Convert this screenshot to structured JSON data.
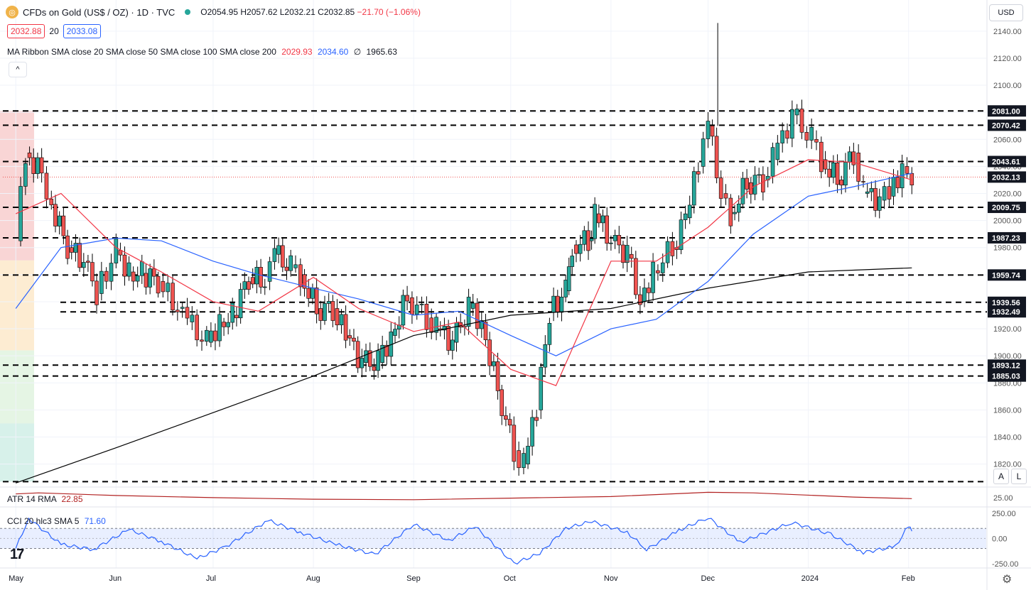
{
  "header": {
    "symbol": "CFDs on Gold (US$ / OZ) · 1D · TVC",
    "open": "O2054.95",
    "high": "H2057.62",
    "low": "L2032.21",
    "close": "C2032.85",
    "change": "−21.70 (−1.06%)",
    "bid": "2032.88",
    "spread": "20",
    "ask": "2033.08",
    "currency": "USD"
  },
  "indicators": {
    "ma_label": "MA Ribbon SMA close 20 SMA close 50 SMA close 100 SMA close 200",
    "ma_values": [
      "2029.93",
      "2034.60",
      "∅",
      "1965.63"
    ],
    "atr_label": "ATR 14 RMA",
    "atr_value": "22.85",
    "cci_label": "CCI 20 hlc3 SMA 5",
    "cci_value": "71.60"
  },
  "controls": {
    "auto": "A",
    "log": "L",
    "collapse": "^"
  },
  "colors": {
    "up": "#26a69a",
    "down": "#ef5350",
    "sma20": "#f23645",
    "sma50": "#2962ff",
    "sma200": "#000000",
    "cci": "#2962ff",
    "atr": "#b22222"
  },
  "chart_data": [
    {
      "type": "candlestick",
      "title": "CFDs on Gold (US$ / OZ) · 1D · TVC",
      "ylim": [
        1803,
        2163
      ],
      "y_ticks": [
        1820,
        1840,
        1860,
        1880,
        1900,
        1920,
        1940,
        1960,
        1980,
        2000,
        2020,
        2040,
        2060,
        2080,
        2100,
        2120,
        2140
      ],
      "x_labels": [
        {
          "label": "May",
          "date": "2023-05-01"
        },
        {
          "label": "Jun",
          "date": "2023-06-01"
        },
        {
          "label": "Jul",
          "date": "2023-07-01"
        },
        {
          "label": "Aug",
          "date": "2023-08-01"
        },
        {
          "label": "Sep",
          "date": "2023-09-01"
        },
        {
          "label": "Oct",
          "date": "2023-10-01"
        },
        {
          "label": "Nov",
          "date": "2023-11-01"
        },
        {
          "label": "Dec",
          "date": "2023-12-01"
        },
        {
          "label": "2024",
          "date": "2024-01-01"
        },
        {
          "label": "Feb",
          "date": "2024-02-01"
        }
      ],
      "date_range": [
        "2023-05-01",
        "2024-02-02"
      ],
      "closes": [
        {
          "date": "2023-05-01",
          "close": 1985
        },
        {
          "date": "2023-05-04",
          "close": 2050
        },
        {
          "date": "2023-05-09",
          "close": 2035
        },
        {
          "date": "2023-05-12",
          "close": 2012
        },
        {
          "date": "2023-05-17",
          "close": 1980
        },
        {
          "date": "2023-05-22",
          "close": 1970
        },
        {
          "date": "2023-05-26",
          "close": 1946
        },
        {
          "date": "2023-06-01",
          "close": 1978
        },
        {
          "date": "2023-06-05",
          "close": 1962
        },
        {
          "date": "2023-06-09",
          "close": 1961
        },
        {
          "date": "2023-06-14",
          "close": 1955
        },
        {
          "date": "2023-06-20",
          "close": 1935
        },
        {
          "date": "2023-06-23",
          "close": 1925
        },
        {
          "date": "2023-06-29",
          "close": 1910
        },
        {
          "date": "2023-07-03",
          "close": 1925
        },
        {
          "date": "2023-07-07",
          "close": 1930
        },
        {
          "date": "2023-07-12",
          "close": 1958
        },
        {
          "date": "2023-07-17",
          "close": 1955
        },
        {
          "date": "2023-07-20",
          "close": 1975
        },
        {
          "date": "2023-07-25",
          "close": 1965
        },
        {
          "date": "2023-07-28",
          "close": 1960
        },
        {
          "date": "2023-08-02",
          "close": 1935
        },
        {
          "date": "2023-08-07",
          "close": 1935
        },
        {
          "date": "2023-08-11",
          "close": 1915
        },
        {
          "date": "2023-08-16",
          "close": 1895
        },
        {
          "date": "2023-08-21",
          "close": 1895
        },
        {
          "date": "2023-08-25",
          "close": 1915
        },
        {
          "date": "2023-08-30",
          "close": 1943
        },
        {
          "date": "2023-09-05",
          "close": 1928
        },
        {
          "date": "2023-09-08",
          "close": 1920
        },
        {
          "date": "2023-09-13",
          "close": 1910
        },
        {
          "date": "2023-09-18",
          "close": 1935
        },
        {
          "date": "2023-09-22",
          "close": 1925
        },
        {
          "date": "2023-09-27",
          "close": 1875
        },
        {
          "date": "2023-10-02",
          "close": 1830
        },
        {
          "date": "2023-10-05",
          "close": 1820
        },
        {
          "date": "2023-10-09",
          "close": 1860
        },
        {
          "date": "2023-10-13",
          "close": 1932
        },
        {
          "date": "2023-10-18",
          "close": 1948
        },
        {
          "date": "2023-10-20",
          "close": 1982
        },
        {
          "date": "2023-10-25",
          "close": 1985
        },
        {
          "date": "2023-10-27",
          "close": 2005
        },
        {
          "date": "2023-11-01",
          "close": 1985
        },
        {
          "date": "2023-11-06",
          "close": 1975
        },
        {
          "date": "2023-11-10",
          "close": 1940
        },
        {
          "date": "2023-11-14",
          "close": 1963
        },
        {
          "date": "2023-11-20",
          "close": 1980
        },
        {
          "date": "2023-11-24",
          "close": 2002
        },
        {
          "date": "2023-11-28",
          "close": 2040
        },
        {
          "date": "2023-12-01",
          "close": 2070
        },
        {
          "date": "2023-12-05",
          "close": 2020
        },
        {
          "date": "2023-12-08",
          "close": 2005
        },
        {
          "date": "2023-12-13",
          "close": 2028
        },
        {
          "date": "2023-12-18",
          "close": 2030
        },
        {
          "date": "2023-12-21",
          "close": 2045
        },
        {
          "date": "2023-12-27",
          "close": 2078
        },
        {
          "date": "2024-01-02",
          "close": 2060
        },
        {
          "date": "2024-01-05",
          "close": 2045
        },
        {
          "date": "2024-01-10",
          "close": 2030
        },
        {
          "date": "2024-01-15",
          "close": 2050
        },
        {
          "date": "2024-01-18",
          "close": 2020
        },
        {
          "date": "2024-01-23",
          "close": 2015
        },
        {
          "date": "2024-01-26",
          "close": 2018
        },
        {
          "date": "2024-01-30",
          "close": 2040
        },
        {
          "date": "2024-02-02",
          "close": 2033
        }
      ],
      "sma20": [
        {
          "date": "2023-05-01",
          "value": 2005
        },
        {
          "date": "2023-05-15",
          "value": 2020
        },
        {
          "date": "2023-06-01",
          "value": 1980
        },
        {
          "date": "2023-06-15",
          "value": 1962
        },
        {
          "date": "2023-07-01",
          "value": 1940
        },
        {
          "date": "2023-07-15",
          "value": 1933
        },
        {
          "date": "2023-08-01",
          "value": 1958
        },
        {
          "date": "2023-08-15",
          "value": 1935
        },
        {
          "date": "2023-09-01",
          "value": 1918
        },
        {
          "date": "2023-09-15",
          "value": 1925
        },
        {
          "date": "2023-10-01",
          "value": 1890
        },
        {
          "date": "2023-10-15",
          "value": 1878
        },
        {
          "date": "2023-11-01",
          "value": 1970
        },
        {
          "date": "2023-11-15",
          "value": 1970
        },
        {
          "date": "2023-12-01",
          "value": 1995
        },
        {
          "date": "2023-12-15",
          "value": 2025
        },
        {
          "date": "2024-01-01",
          "value": 2045
        },
        {
          "date": "2024-01-15",
          "value": 2043
        },
        {
          "date": "2024-02-02",
          "value": 2030
        }
      ],
      "sma50": [
        {
          "date": "2023-05-01",
          "value": 1935
        },
        {
          "date": "2023-05-15",
          "value": 1980
        },
        {
          "date": "2023-06-01",
          "value": 1987
        },
        {
          "date": "2023-06-15",
          "value": 1985
        },
        {
          "date": "2023-07-01",
          "value": 1970
        },
        {
          "date": "2023-07-15",
          "value": 1960
        },
        {
          "date": "2023-08-01",
          "value": 1950
        },
        {
          "date": "2023-08-15",
          "value": 1942
        },
        {
          "date": "2023-09-01",
          "value": 1930
        },
        {
          "date": "2023-09-15",
          "value": 1933
        },
        {
          "date": "2023-10-01",
          "value": 1915
        },
        {
          "date": "2023-10-15",
          "value": 1900
        },
        {
          "date": "2023-11-01",
          "value": 1920
        },
        {
          "date": "2023-11-15",
          "value": 1927
        },
        {
          "date": "2023-12-01",
          "value": 1955
        },
        {
          "date": "2023-12-15",
          "value": 1990
        },
        {
          "date": "2024-01-01",
          "value": 2018
        },
        {
          "date": "2024-01-15",
          "value": 2025
        },
        {
          "date": "2024-02-02",
          "value": 2035
        }
      ],
      "sma200": [
        {
          "date": "2023-05-01",
          "value": 1806
        },
        {
          "date": "2023-06-01",
          "value": 1832
        },
        {
          "date": "2023-07-01",
          "value": 1858
        },
        {
          "date": "2023-08-01",
          "value": 1885
        },
        {
          "date": "2023-09-01",
          "value": 1915
        },
        {
          "date": "2023-10-01",
          "value": 1930
        },
        {
          "date": "2023-11-01",
          "value": 1935
        },
        {
          "date": "2023-12-01",
          "value": 1950
        },
        {
          "date": "2024-01-01",
          "value": 1962
        },
        {
          "date": "2024-02-02",
          "value": 1965
        }
      ],
      "levels": [
        {
          "value": 2081.0,
          "label": "2081.00"
        },
        {
          "value": 2070.42,
          "label": "2070.42"
        },
        {
          "value": 2043.61,
          "label": "2043.61"
        },
        {
          "value": 2032.13,
          "label": "2032.13"
        },
        {
          "value": 2009.75,
          "label": "2009.75"
        },
        {
          "value": 1987.23,
          "label": "1987.23"
        },
        {
          "value": 1959.74,
          "label": "1959.74"
        },
        {
          "value": 1939.56,
          "label": "1939.56"
        },
        {
          "value": 1932.49,
          "label": "1932.49"
        },
        {
          "value": 1893.12,
          "label": "1893.12"
        },
        {
          "value": 1885.03,
          "label": "1885.03"
        },
        {
          "value": 1807,
          "label": ""
        }
      ]
    },
    {
      "type": "line",
      "title": "ATR 14 RMA",
      "y_ticks": [
        25.0
      ],
      "ylim": [
        10,
        45
      ],
      "values": [
        {
          "date": "2023-05-01",
          "value": 32
        },
        {
          "date": "2023-05-08",
          "value": 34
        },
        {
          "date": "2023-06-01",
          "value": 29
        },
        {
          "date": "2023-07-01",
          "value": 25
        },
        {
          "date": "2023-08-01",
          "value": 22
        },
        {
          "date": "2023-09-01",
          "value": 21
        },
        {
          "date": "2023-10-01",
          "value": 24
        },
        {
          "date": "2023-11-01",
          "value": 27
        },
        {
          "date": "2023-12-01",
          "value": 35
        },
        {
          "date": "2023-12-15",
          "value": 34
        },
        {
          "date": "2024-01-15",
          "value": 26
        },
        {
          "date": "2024-02-02",
          "value": 23
        }
      ]
    },
    {
      "type": "line",
      "title": "CCI 20 hlc3 SMA 5",
      "y_ticks": [
        250.0,
        0.0,
        -250.0
      ],
      "ylim": [
        -280,
        300
      ],
      "band": [
        -100,
        100
      ],
      "values": [
        {
          "date": "2023-05-01",
          "value": -100
        },
        {
          "date": "2023-05-05",
          "value": 200
        },
        {
          "date": "2023-05-15",
          "value": -60
        },
        {
          "date": "2023-05-25",
          "value": -110
        },
        {
          "date": "2023-06-05",
          "value": 90
        },
        {
          "date": "2023-06-15",
          "value": -30
        },
        {
          "date": "2023-06-26",
          "value": -200
        },
        {
          "date": "2023-07-05",
          "value": -80
        },
        {
          "date": "2023-07-18",
          "value": 180
        },
        {
          "date": "2023-07-28",
          "value": 60
        },
        {
          "date": "2023-08-08",
          "value": -60
        },
        {
          "date": "2023-08-20",
          "value": -160
        },
        {
          "date": "2023-09-01",
          "value": 140
        },
        {
          "date": "2023-09-12",
          "value": -20
        },
        {
          "date": "2023-09-20",
          "value": 120
        },
        {
          "date": "2023-10-02",
          "value": -250
        },
        {
          "date": "2023-10-10",
          "value": -150
        },
        {
          "date": "2023-10-18",
          "value": 100
        },
        {
          "date": "2023-10-26",
          "value": 170
        },
        {
          "date": "2023-11-06",
          "value": 60
        },
        {
          "date": "2023-11-12",
          "value": -110
        },
        {
          "date": "2023-11-22",
          "value": 80
        },
        {
          "date": "2023-12-01",
          "value": 210
        },
        {
          "date": "2023-12-11",
          "value": -40
        },
        {
          "date": "2023-12-27",
          "value": 160
        },
        {
          "date": "2024-01-08",
          "value": 40
        },
        {
          "date": "2024-01-18",
          "value": -140
        },
        {
          "date": "2024-01-28",
          "value": -80
        },
        {
          "date": "2024-02-01",
          "value": 130
        },
        {
          "date": "2024-02-02",
          "value": 72
        }
      ]
    }
  ]
}
